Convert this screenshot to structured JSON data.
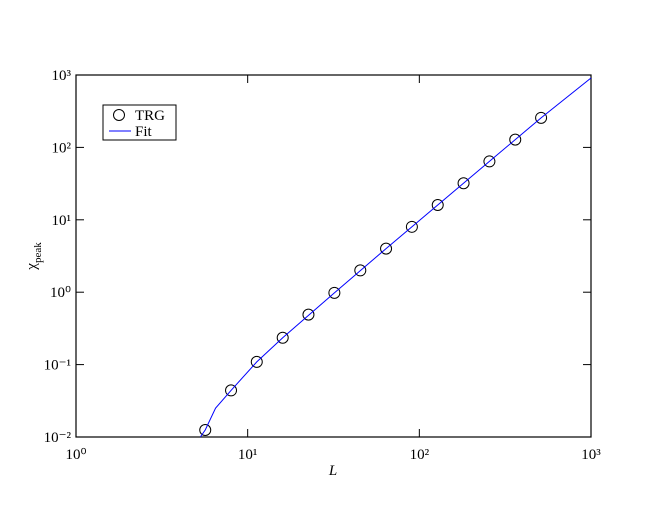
{
  "chart_data": {
    "type": "scatter",
    "xlabel": "L",
    "ylabel": "χ",
    "ylabel_subscript": "peak",
    "xscale": "log",
    "yscale": "log",
    "xlim": [
      1,
      1000
    ],
    "ylim": [
      0.01,
      1000
    ],
    "xticks": [
      {
        "value": 1,
        "label": "10⁰"
      },
      {
        "value": 10,
        "label": "10¹"
      },
      {
        "value": 100,
        "label": "10²"
      },
      {
        "value": 1000,
        "label": "10³"
      }
    ],
    "yticks": [
      {
        "value": 0.01,
        "label": "10⁻²"
      },
      {
        "value": 0.1,
        "label": "10⁻¹"
      },
      {
        "value": 1,
        "label": "10⁰"
      },
      {
        "value": 10,
        "label": "10¹"
      },
      {
        "value": 100,
        "label": "10²"
      },
      {
        "value": 1000,
        "label": "10³"
      }
    ],
    "legend_loc": "upper left",
    "series": [
      {
        "name": "TRG",
        "type": "scatter",
        "color": "#000000",
        "x": [
          5.66,
          8,
          11.3,
          16,
          22.6,
          32,
          45.3,
          64,
          90.5,
          128,
          181,
          256,
          362,
          512
        ],
        "values": [
          0.0125,
          0.044,
          0.109,
          0.235,
          0.49,
          0.98,
          2.0,
          4.0,
          8.0,
          16,
          32,
          64,
          128,
          256
        ]
      },
      {
        "name": "Fit",
        "type": "line",
        "color": "#0000ff",
        "x": [
          5.3,
          5.66,
          6.5,
          8,
          11.3,
          16,
          32,
          64,
          128,
          256,
          512,
          1000
        ],
        "values": [
          0.01,
          0.0125,
          0.025,
          0.044,
          0.109,
          0.235,
          0.98,
          4.0,
          16,
          64,
          256,
          910
        ]
      }
    ]
  }
}
